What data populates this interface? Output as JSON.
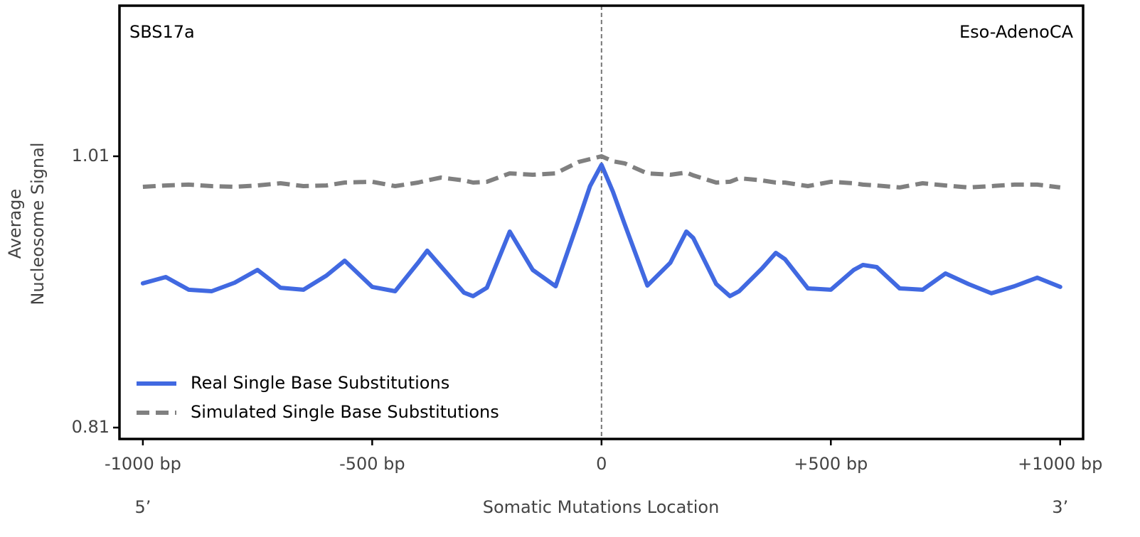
{
  "chart_data": {
    "type": "line",
    "annotations": [
      "SBS17a",
      "Eso-AdenoCA"
    ],
    "xlabel": "Somatic Mutations Location",
    "ylabel": [
      "Average",
      "Nucleosome Signal"
    ],
    "end_labels": [
      "5’",
      "3’"
    ],
    "x": [
      -1000,
      -950,
      -900,
      -850,
      -800,
      -750,
      -700,
      -650,
      -600,
      -560,
      -500,
      -450,
      -400,
      -380,
      -350,
      -300,
      -280,
      -250,
      -200,
      -150,
      -100,
      -50,
      -25,
      0,
      25,
      50,
      100,
      150,
      185,
      200,
      250,
      280,
      300,
      350,
      380,
      400,
      450,
      500,
      550,
      570,
      600,
      650,
      700,
      750,
      800,
      850,
      900,
      950,
      1000
    ],
    "series": [
      {
        "name": "Real Single Base Substitutions",
        "color": "#4169e1",
        "dash": false,
        "values": [
          0.9163,
          0.921,
          0.9116,
          0.9105,
          0.9168,
          0.9262,
          0.9131,
          0.9116,
          0.922,
          0.933,
          0.9137,
          0.9105,
          0.9315,
          0.9404,
          0.9288,
          0.9095,
          0.9069,
          0.9131,
          0.9545,
          0.9262,
          0.9142,
          0.9629,
          0.988,
          1.0037,
          0.9838,
          0.9603,
          0.9147,
          0.9315,
          0.9545,
          0.9498,
          0.9158,
          0.9069,
          0.9105,
          0.9273,
          0.9388,
          0.9341,
          0.9126,
          0.9116,
          0.9262,
          0.9299,
          0.9283,
          0.9126,
          0.9116,
          0.9236,
          0.9158,
          0.909,
          0.9142,
          0.9205,
          0.9137
        ]
      },
      {
        "name": "Simulated Single Base Substitutions",
        "color": "#808080",
        "dash": true,
        "values": [
          0.9875,
          0.9885,
          0.9891,
          0.988,
          0.9875,
          0.9885,
          0.9901,
          0.988,
          0.9885,
          0.9906,
          0.9912,
          0.988,
          0.9906,
          0.9922,
          0.9943,
          0.9922,
          0.9906,
          0.9912,
          0.9974,
          0.9964,
          0.9974,
          1.0058,
          1.0079,
          1.01,
          1.0063,
          1.0048,
          0.9974,
          0.9964,
          0.998,
          0.9959,
          0.9906,
          0.9912,
          0.9938,
          0.9922,
          0.9906,
          0.9906,
          0.988,
          0.9912,
          0.9901,
          0.9891,
          0.9885,
          0.987,
          0.9901,
          0.9885,
          0.987,
          0.988,
          0.9891,
          0.9891,
          0.987
        ]
      }
    ],
    "xlim": [
      -1051,
      1050
    ],
    "ylim": [
      0.8016,
      1.121
    ],
    "xticks": [
      {
        "value": -1000,
        "label": "-1000 bp"
      },
      {
        "value": -500,
        "label": "-500 bp"
      },
      0,
      {
        "value": 500,
        "label": "+500 bp"
      },
      {
        "value": 1000,
        "label": "+1000 bp"
      }
    ],
    "yticks": [
      0.81,
      1.01
    ],
    "vline": 0,
    "legend": "lower left",
    "grid": false
  }
}
